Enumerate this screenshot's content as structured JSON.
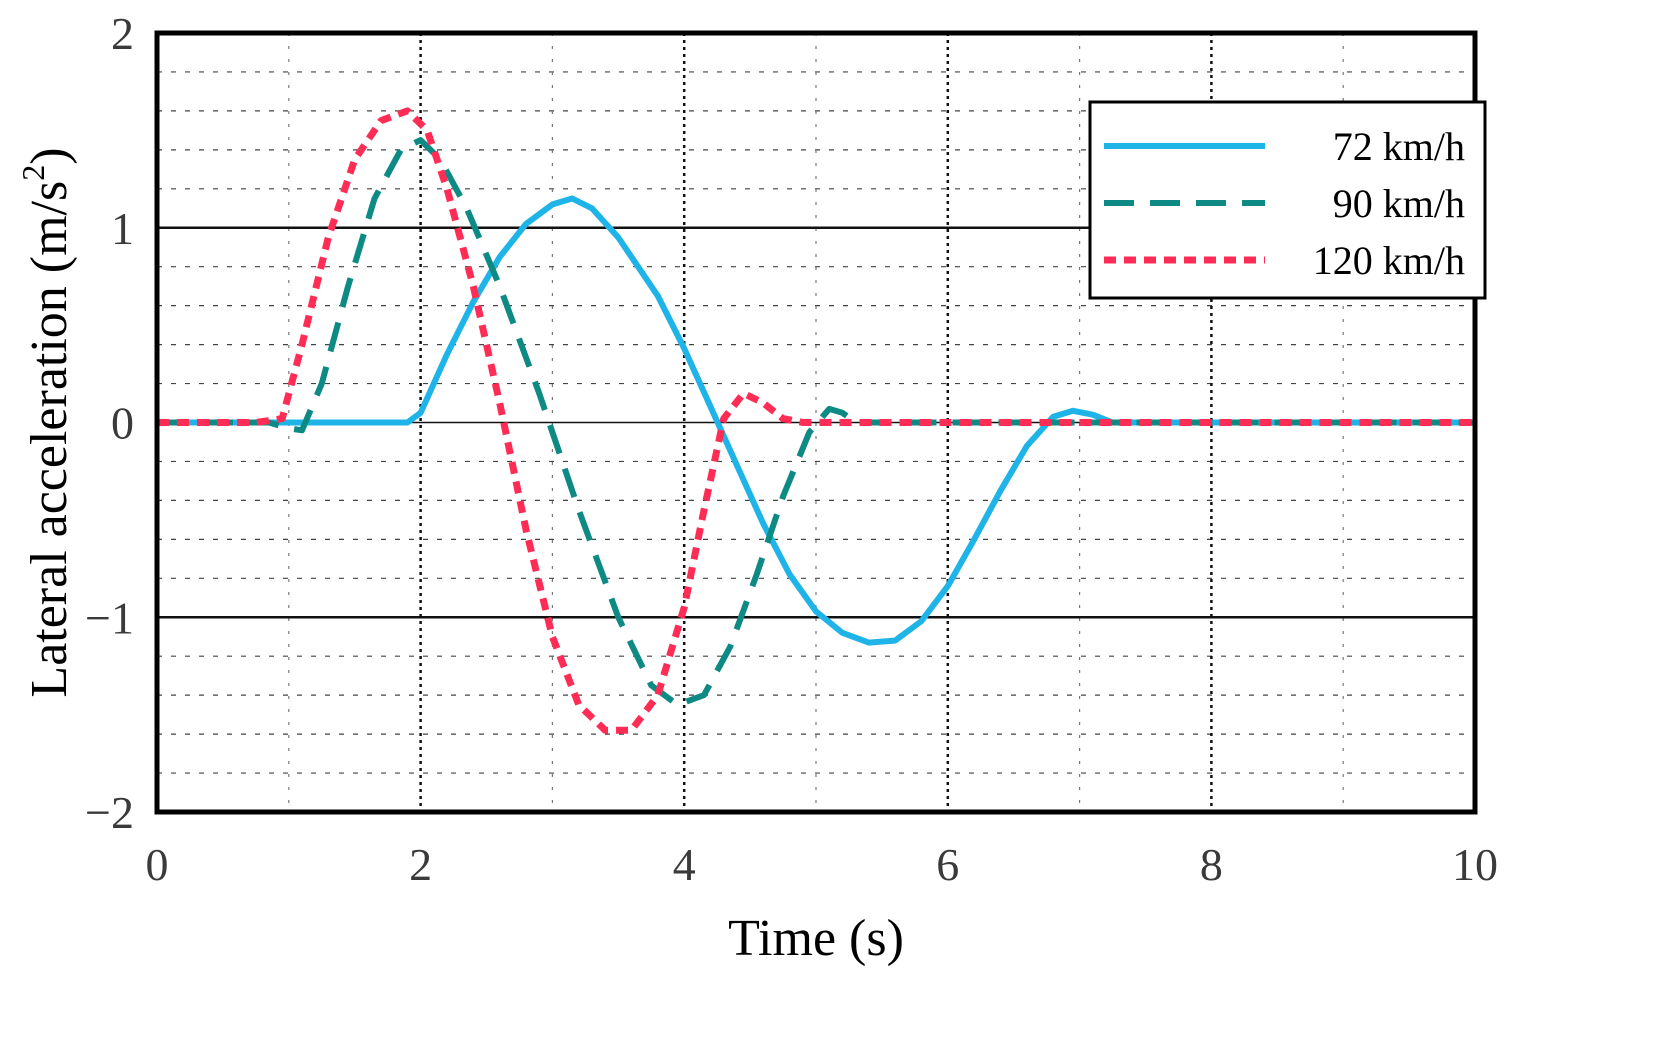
{
  "chart_data": {
    "type": "line",
    "title": "",
    "xlabel": "Time (s)",
    "ylabel_main": "Lateral acceleration (m/s",
    "ylabel_sup": "2",
    "ylabel_close": ")",
    "xlim": [
      0,
      10
    ],
    "ylim": [
      -2,
      2
    ],
    "xticks": [
      0,
      2,
      4,
      6,
      8,
      10
    ],
    "yticks": [
      -2,
      -1,
      0,
      1,
      2
    ],
    "xtick_labels": [
      "0",
      "2",
      "4",
      "6",
      "8",
      "10"
    ],
    "ytick_labels": [
      "−2",
      "−1",
      "0",
      "1",
      "2"
    ],
    "grid": true,
    "legend_position": "top-right",
    "series": [
      {
        "name": "72 km/h",
        "color": "#1fb4e8",
        "style": "solid",
        "x": [
          0,
          1.9,
          2.0,
          2.2,
          2.4,
          2.6,
          2.8,
          3.0,
          3.15,
          3.3,
          3.5,
          3.8,
          4.0,
          4.2,
          4.4,
          4.6,
          4.8,
          5.0,
          5.2,
          5.4,
          5.6,
          5.8,
          6.0,
          6.2,
          6.4,
          6.6,
          6.8,
          6.95,
          7.1,
          7.25,
          10
        ],
        "y": [
          0,
          0,
          0.05,
          0.35,
          0.62,
          0.85,
          1.02,
          1.12,
          1.15,
          1.1,
          0.95,
          0.65,
          0.38,
          0.08,
          -0.22,
          -0.52,
          -0.78,
          -0.97,
          -1.08,
          -1.13,
          -1.12,
          -1.02,
          -0.84,
          -0.6,
          -0.35,
          -0.12,
          0.03,
          0.06,
          0.04,
          0,
          0
        ]
      },
      {
        "name": "90 km/h",
        "color": "#0e8a84",
        "style": "dashdot",
        "x": [
          0,
          0.85,
          1.0,
          1.1,
          1.25,
          1.45,
          1.65,
          1.85,
          2.0,
          2.15,
          2.35,
          2.6,
          2.9,
          3.2,
          3.5,
          3.75,
          3.95,
          4.15,
          4.35,
          4.55,
          4.75,
          4.95,
          5.1,
          5.2,
          5.3,
          10
        ],
        "y": [
          0,
          0,
          -0.03,
          -0.04,
          0.2,
          0.7,
          1.15,
          1.4,
          1.45,
          1.35,
          1.1,
          0.7,
          0.15,
          -0.45,
          -1.0,
          -1.35,
          -1.45,
          -1.4,
          -1.15,
          -0.78,
          -0.38,
          -0.05,
          0.07,
          0.05,
          0,
          0
        ]
      },
      {
        "name": "120 km/h",
        "color": "#ff2d55",
        "style": "dotted",
        "x": [
          0,
          0.75,
          0.95,
          1.1,
          1.3,
          1.5,
          1.7,
          1.9,
          2.05,
          2.2,
          2.4,
          2.6,
          2.8,
          3.0,
          3.2,
          3.4,
          3.6,
          3.8,
          4.0,
          4.15,
          4.3,
          4.45,
          4.6,
          4.75,
          4.9,
          10
        ],
        "y": [
          0,
          0,
          0.02,
          0.4,
          0.95,
          1.35,
          1.55,
          1.6,
          1.5,
          1.2,
          0.7,
          0.1,
          -0.55,
          -1.1,
          -1.45,
          -1.58,
          -1.58,
          -1.4,
          -0.95,
          -0.45,
          0.02,
          0.15,
          0.1,
          0.02,
          0,
          0
        ]
      }
    ]
  }
}
